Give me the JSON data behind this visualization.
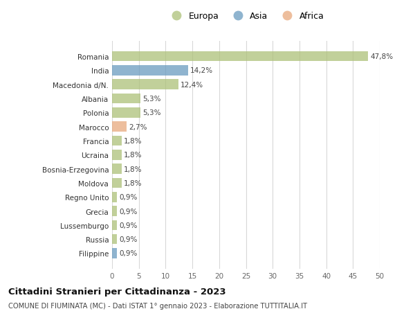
{
  "countries": [
    "Romania",
    "India",
    "Macedonia d/N.",
    "Albania",
    "Polonia",
    "Marocco",
    "Francia",
    "Ucraina",
    "Bosnia-Erzegovina",
    "Moldova",
    "Regno Unito",
    "Grecia",
    "Lussemburgo",
    "Russia",
    "Filippine"
  ],
  "values": [
    47.8,
    14.2,
    12.4,
    5.3,
    5.3,
    2.7,
    1.8,
    1.8,
    1.8,
    1.8,
    0.9,
    0.9,
    0.9,
    0.9,
    0.9
  ],
  "labels": [
    "47,8%",
    "14,2%",
    "12,4%",
    "5,3%",
    "5,3%",
    "2,7%",
    "1,8%",
    "1,8%",
    "1,8%",
    "1,8%",
    "0,9%",
    "0,9%",
    "0,9%",
    "0,9%",
    "0,9%"
  ],
  "continents": [
    "Europa",
    "Asia",
    "Europa",
    "Europa",
    "Europa",
    "Africa",
    "Europa",
    "Europa",
    "Europa",
    "Europa",
    "Europa",
    "Europa",
    "Europa",
    "Europa",
    "Asia"
  ],
  "colors": {
    "Europa": "#adc178",
    "Asia": "#6a9bbf",
    "Africa": "#e8a87c"
  },
  "xlim": [
    0,
    50
  ],
  "xticks": [
    0,
    5,
    10,
    15,
    20,
    25,
    30,
    35,
    40,
    45,
    50
  ],
  "title": "Cittadini Stranieri per Cittadinanza - 2023",
  "subtitle": "COMUNE DI FIUMINATA (MC) - Dati ISTAT 1° gennaio 2023 - Elaborazione TUTTITALIA.IT",
  "bg_color": "#ffffff",
  "grid_color": "#d8d8d8",
  "bar_alpha": 0.75,
  "legend_order": [
    "Europa",
    "Asia",
    "Africa"
  ]
}
